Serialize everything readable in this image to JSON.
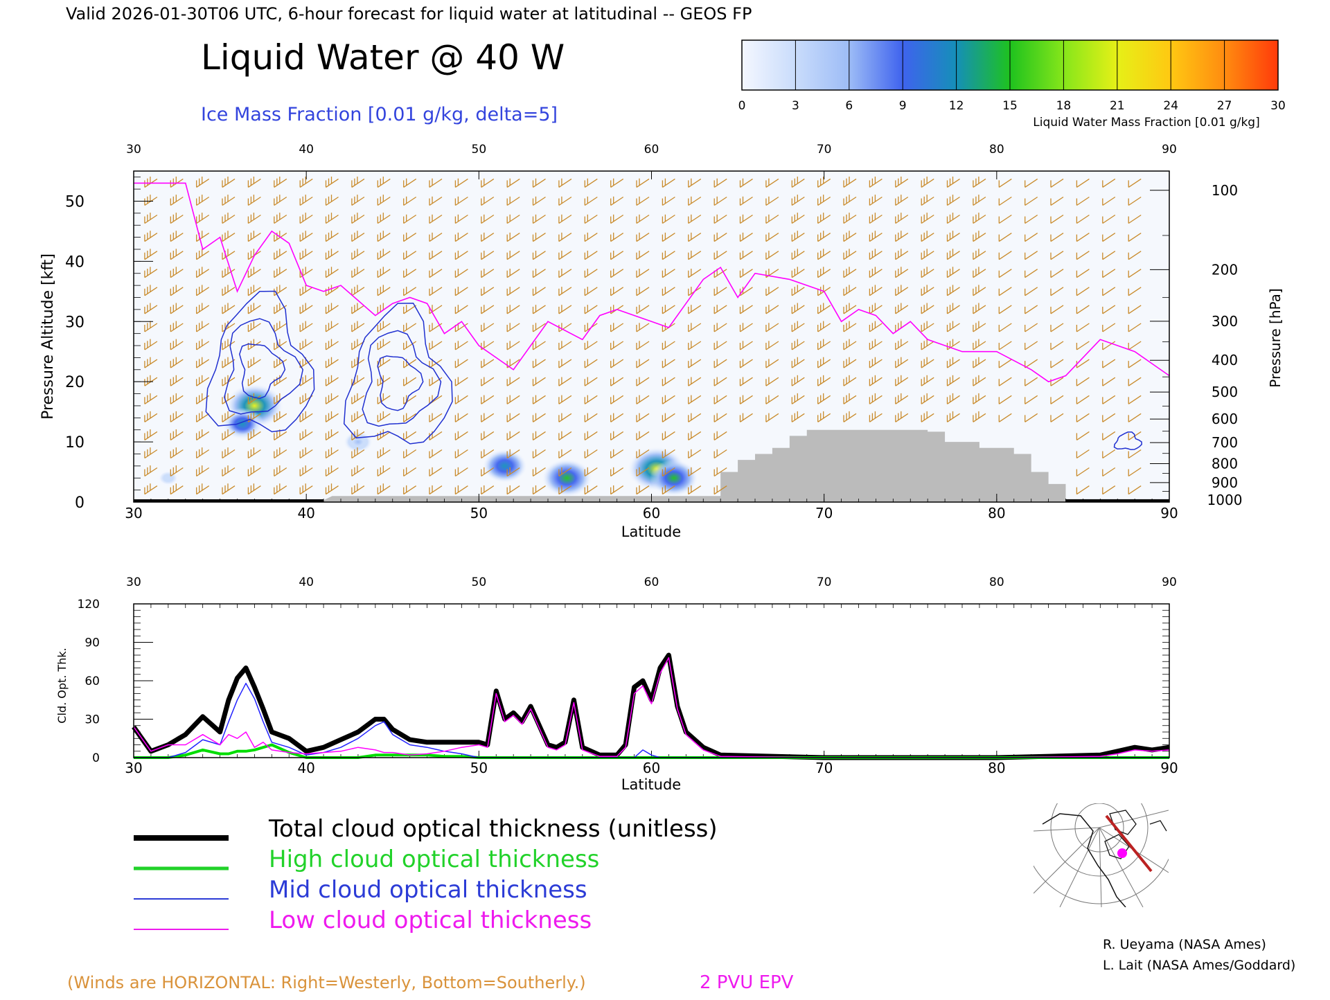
{
  "header": {
    "valid_line": "Valid 2026-01-30T06 UTC, 6-hour forecast for liquid water at latitudinal -- GEOS FP",
    "title": "Liquid Water @ 40 W",
    "ice_subtitle": "Ice Mass Fraction [0.01 g/kg, delta=5]"
  },
  "colorbar": {
    "ticks": [
      "0",
      "3",
      "6",
      "9",
      "12",
      "15",
      "18",
      "21",
      "24",
      "27",
      "30"
    ],
    "label": "Liquid Water Mass Fraction [0.01 g/kg]",
    "colors": [
      "#f4f7ff",
      "#c9dcfb",
      "#9dbcf6",
      "#3f63ee",
      "#158fb8",
      "#1ec21e",
      "#86e61a",
      "#e6f017",
      "#ffc812",
      "#ff8c10",
      "#ff3a0a"
    ]
  },
  "chart_data": [
    {
      "type": "heatmap",
      "title": "Liquid Water @ 40 W",
      "xlabel": "Latitude",
      "ylabel": "Pressure Altitude [kft]",
      "y2label": "Pressure [hPa]",
      "xlim": [
        30,
        90
      ],
      "ylim": [
        0,
        55
      ],
      "x_ticks": [
        "30",
        "40",
        "50",
        "60",
        "70",
        "80",
        "90"
      ],
      "y_ticks": [
        "0",
        "10",
        "20",
        "30",
        "40",
        "50"
      ],
      "pressure_ticks": [
        "100",
        "200",
        "300",
        "400",
        "500",
        "600",
        "700",
        "800",
        "900",
        "1000"
      ],
      "liquid_water_blobs": [
        {
          "lat": 37,
          "alt": 16,
          "value": 20
        },
        {
          "lat": 36.3,
          "alt": 13,
          "value": 12
        },
        {
          "lat": 51.5,
          "alt": 6,
          "value": 13
        },
        {
          "lat": 55.1,
          "alt": 4,
          "value": 16
        },
        {
          "lat": 60.3,
          "alt": 5.5,
          "value": 20
        },
        {
          "lat": 61.3,
          "alt": 4,
          "value": 15
        },
        {
          "lat": 43,
          "alt": 10,
          "value": 5
        },
        {
          "lat": 32,
          "alt": 4,
          "value": 4
        }
      ],
      "ice_contours": [
        {
          "lat": 37.3,
          "alt": 22,
          "levels": [
            5,
            10,
            15
          ]
        },
        {
          "lat": 45.3,
          "alt": 20,
          "levels": [
            5,
            10,
            15
          ]
        },
        {
          "lat": 87.6,
          "alt": 10,
          "levels": [
            5
          ]
        }
      ],
      "epv_line": {
        "name": "2 PVU EPV",
        "lat": [
          30,
          33,
          34,
          35,
          36,
          37,
          38,
          39,
          40,
          41,
          42,
          44,
          45,
          46,
          47,
          48,
          49,
          50,
          52,
          54,
          56,
          57,
          58,
          60,
          61,
          62,
          63,
          64,
          65,
          66,
          68,
          70,
          71,
          72,
          73,
          74,
          75,
          76,
          78,
          80,
          82,
          83,
          84,
          86,
          88,
          89,
          90
        ],
        "alt": [
          53,
          53,
          42,
          44,
          35,
          41,
          45,
          43,
          36,
          35,
          36,
          31,
          33,
          34,
          33,
          28,
          30,
          26,
          22,
          30,
          27,
          31,
          32,
          30,
          29,
          33,
          37,
          39,
          34,
          38,
          37,
          35,
          30,
          32,
          31,
          28,
          30,
          27,
          25,
          25,
          22,
          20,
          21,
          27,
          25,
          23,
          21
        ]
      },
      "terrain": {
        "lat": [
          30,
          41,
          41.5,
          64,
          64,
          65,
          65,
          66,
          66,
          67,
          67,
          68,
          68,
          69,
          69,
          76,
          76,
          77,
          77,
          79,
          79,
          81,
          81,
          82,
          82,
          83,
          83,
          84,
          84,
          90
        ],
        "alt": [
          0.3,
          0.3,
          1,
          1,
          5,
          5,
          7,
          7,
          8,
          8,
          9,
          9,
          11,
          11,
          12,
          12,
          11.7,
          11.7,
          10,
          10,
          9,
          9,
          8,
          8,
          5,
          5,
          3,
          3,
          0.5,
          0.5
        ]
      }
    },
    {
      "type": "line",
      "xlabel": "Latitude",
      "ylabel": "Cld. Opt. Thk.",
      "xlim": [
        30,
        90
      ],
      "ylim": [
        0,
        120
      ],
      "x_ticks": [
        "30",
        "40",
        "50",
        "60",
        "70",
        "80",
        "90"
      ],
      "y_ticks": [
        "0",
        "30",
        "60",
        "90",
        "120"
      ],
      "x": [
        30,
        31,
        32,
        33,
        34,
        35,
        35.5,
        36,
        36.5,
        37,
        37.5,
        38,
        39,
        40,
        41,
        42,
        43,
        44,
        44.5,
        45,
        46,
        47,
        48,
        49,
        50,
        50.5,
        51,
        51.5,
        52,
        52.5,
        53,
        54,
        54.5,
        55,
        55.5,
        56,
        57,
        58,
        58.5,
        59,
        59.5,
        60,
        60.5,
        61,
        61.5,
        62,
        63,
        64,
        70,
        80,
        86,
        87,
        88,
        89,
        90
      ],
      "series": [
        {
          "name": "Total cloud optical thickness (unitless)",
          "color": "#000000",
          "values": [
            24,
            5,
            10,
            18,
            32,
            20,
            45,
            62,
            70,
            55,
            38,
            20,
            15,
            5,
            8,
            14,
            20,
            30,
            30,
            22,
            14,
            12,
            12,
            12,
            12,
            10,
            52,
            30,
            35,
            28,
            40,
            10,
            8,
            12,
            45,
            8,
            2,
            2,
            10,
            55,
            60,
            45,
            70,
            80,
            40,
            20,
            8,
            2,
            0,
            0,
            2,
            5,
            8,
            6,
            8
          ]
        },
        {
          "name": "High cloud optical thickness",
          "color": "#00dd00",
          "values": [
            0,
            0,
            0,
            2,
            6,
            3,
            3,
            5,
            5,
            6,
            8,
            10,
            4,
            0,
            0,
            0,
            0,
            2,
            2,
            2,
            2,
            2,
            1,
            1,
            0,
            0,
            0,
            0,
            0,
            0,
            0,
            0,
            0,
            0,
            0,
            0,
            0,
            0,
            0,
            0,
            0,
            0,
            0,
            0,
            0,
            0,
            0,
            0,
            0,
            0,
            0,
            0,
            0,
            0,
            0
          ]
        },
        {
          "name": "Mid cloud optical thickness",
          "color": "#2222ff",
          "values": [
            0,
            0,
            0,
            4,
            14,
            10,
            28,
            45,
            58,
            46,
            28,
            12,
            8,
            2,
            4,
            8,
            15,
            25,
            28,
            18,
            10,
            8,
            5,
            3,
            0,
            0,
            0,
            0,
            0,
            0,
            0,
            0,
            0,
            0,
            0,
            0,
            0,
            0,
            0,
            0,
            6,
            2,
            0,
            0,
            0,
            0,
            0,
            0,
            0,
            0,
            0,
            0,
            0,
            0,
            0
          ]
        },
        {
          "name": "Low cloud optical thickness",
          "color": "#ff00ff",
          "values": [
            24,
            5,
            10,
            10,
            18,
            10,
            18,
            15,
            20,
            8,
            12,
            6,
            4,
            3,
            4,
            5,
            8,
            6,
            4,
            4,
            2,
            3,
            5,
            8,
            10,
            8,
            50,
            28,
            33,
            26,
            38,
            8,
            6,
            10,
            43,
            6,
            1,
            1,
            8,
            50,
            56,
            42,
            66,
            78,
            38,
            18,
            6,
            1,
            0,
            0,
            1,
            3,
            6,
            5,
            6
          ]
        }
      ]
    }
  ],
  "legend": {
    "items": [
      {
        "label": "Total cloud optical thickness (unitless)",
        "color": "#000000"
      },
      {
        "label": "High cloud optical thickness",
        "color": "#22d22a"
      },
      {
        "label": "Mid cloud optical thickness",
        "color": "#2b3bd6"
      },
      {
        "label": "Low cloud optical thickness",
        "color": "#ee1aee"
      }
    ]
  },
  "footer": {
    "winds_note": "(Winds are HORIZONTAL: Right=Westerly, Bottom=Southerly.)",
    "epv_label": "2 PVU EPV",
    "credit1": "R. Ueyama (NASA Ames)",
    "credit2": "L. Lait (NASA Ames/Goddard)"
  },
  "colors": {
    "wind_barbs": "#c98a2a",
    "ice_contour": "#1f2fd0",
    "epv": "#ff00ff",
    "terrain": "#bbbbbb",
    "map_track": "#bb2222",
    "map_marker": "#ff00ff"
  }
}
